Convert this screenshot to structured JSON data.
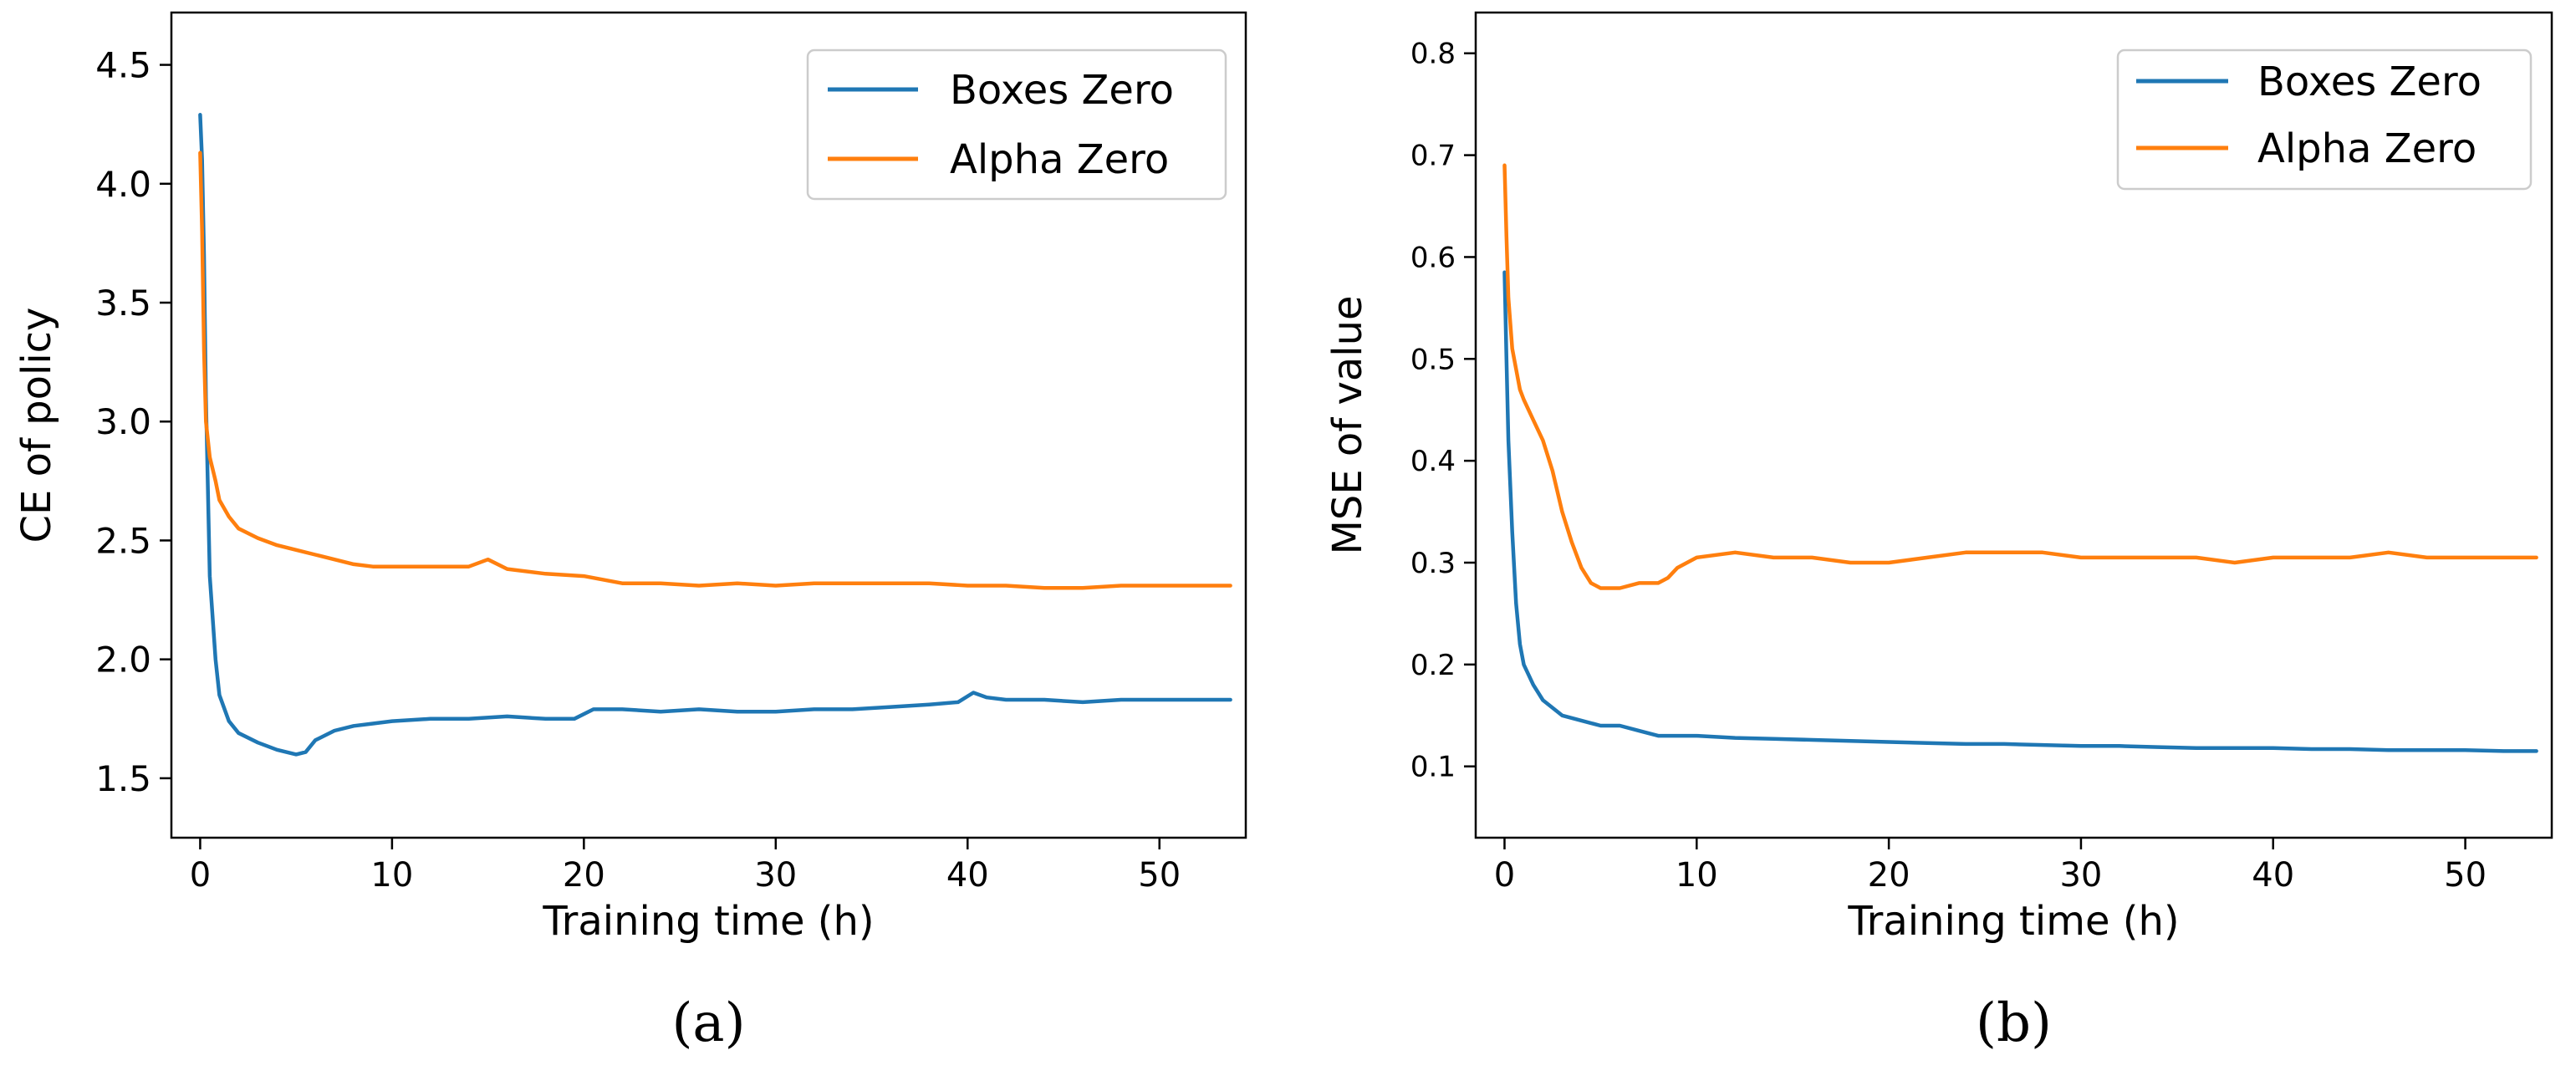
{
  "chart_data": [
    {
      "type": "line",
      "panel_label": "(a)",
      "title": "",
      "xlabel": "Training time (h)",
      "ylabel": "CE of policy",
      "xlim": [
        -1.5,
        54.5
      ],
      "ylim": [
        1.25,
        4.72
      ],
      "xticks": [
        0,
        10,
        20,
        30,
        40,
        50
      ],
      "yticks": [
        1.5,
        2.0,
        2.5,
        3.0,
        3.5,
        4.0,
        4.5
      ],
      "ytick_labels": [
        "1.5",
        "2.0",
        "2.5",
        "3.0",
        "3.5",
        "4.0",
        "4.5"
      ],
      "legend_position": "top-right",
      "series": [
        {
          "name": "Boxes Zero",
          "color": "#1f77b4",
          "x": [
            0,
            0.1,
            0.2,
            0.3,
            0.5,
            0.8,
            1.0,
            1.5,
            2.0,
            3.0,
            4.0,
            5.0,
            5.5,
            6.0,
            7.0,
            8.0,
            9.0,
            10.0,
            12.0,
            14.0,
            16.0,
            18.0,
            19.5,
            20.5,
            22.0,
            24.0,
            26.0,
            28.0,
            30.0,
            32.0,
            34.0,
            36.0,
            38.0,
            39.5,
            40.3,
            41.0,
            42.0,
            44.0,
            46.0,
            48.0,
            50.0,
            52.0,
            53.7
          ],
          "values": [
            4.29,
            4.1,
            3.7,
            3.1,
            2.35,
            2.0,
            1.85,
            1.74,
            1.69,
            1.65,
            1.62,
            1.6,
            1.61,
            1.66,
            1.7,
            1.72,
            1.73,
            1.74,
            1.75,
            1.75,
            1.76,
            1.75,
            1.75,
            1.79,
            1.79,
            1.78,
            1.79,
            1.78,
            1.78,
            1.79,
            1.79,
            1.8,
            1.81,
            1.82,
            1.86,
            1.84,
            1.83,
            1.83,
            1.82,
            1.83,
            1.83,
            1.83,
            1.83
          ]
        },
        {
          "name": "Alpha Zero",
          "color": "#ff7f0e",
          "x": [
            0,
            0.1,
            0.2,
            0.3,
            0.5,
            0.8,
            1.0,
            1.5,
            2.0,
            3.0,
            4.0,
            5.0,
            6.0,
            7.0,
            8.0,
            9.0,
            10.0,
            12.0,
            14.0,
            15.0,
            16.0,
            18.0,
            20.0,
            22.0,
            24.0,
            26.0,
            28.0,
            30.0,
            32.0,
            34.0,
            36.0,
            38.0,
            40.0,
            42.0,
            44.0,
            46.0,
            48.0,
            50.0,
            52.0,
            53.7
          ],
          "values": [
            4.13,
            3.8,
            3.3,
            3.0,
            2.85,
            2.75,
            2.67,
            2.6,
            2.55,
            2.51,
            2.48,
            2.46,
            2.44,
            2.42,
            2.4,
            2.39,
            2.39,
            2.39,
            2.39,
            2.42,
            2.38,
            2.36,
            2.35,
            2.32,
            2.32,
            2.31,
            2.32,
            2.31,
            2.32,
            2.32,
            2.32,
            2.32,
            2.31,
            2.31,
            2.3,
            2.3,
            2.31,
            2.31,
            2.31,
            2.31
          ]
        }
      ]
    },
    {
      "type": "line",
      "panel_label": "(b)",
      "title": "",
      "xlabel": "Training time (h)",
      "ylabel": "MSE of value",
      "xlim": [
        -1.5,
        54.5
      ],
      "ylim": [
        0.03,
        0.84
      ],
      "xticks": [
        0,
        10,
        20,
        30,
        40,
        50
      ],
      "yticks": [
        0.1,
        0.2,
        0.3,
        0.4,
        0.5,
        0.6,
        0.7,
        0.8
      ],
      "ytick_labels": [
        "0.1",
        "0.2",
        "0.3",
        "0.4",
        "0.5",
        "0.6",
        "0.7",
        "0.8"
      ],
      "legend_position": "top-right",
      "series": [
        {
          "name": "Boxes Zero",
          "color": "#1f77b4",
          "x": [
            0,
            0.1,
            0.2,
            0.4,
            0.6,
            0.8,
            1.0,
            1.5,
            2.0,
            3.0,
            4.0,
            5.0,
            6.0,
            7.0,
            8.0,
            9.0,
            10.0,
            12.0,
            14.0,
            16.0,
            18.0,
            20.0,
            22.0,
            24.0,
            26.0,
            28.0,
            30.0,
            32.0,
            34.0,
            36.0,
            38.0,
            40.0,
            42.0,
            44.0,
            46.0,
            48.0,
            50.0,
            52.0,
            53.7
          ],
          "values": [
            0.585,
            0.5,
            0.42,
            0.33,
            0.26,
            0.22,
            0.2,
            0.18,
            0.165,
            0.15,
            0.145,
            0.14,
            0.14,
            0.135,
            0.13,
            0.13,
            0.13,
            0.128,
            0.127,
            0.126,
            0.125,
            0.124,
            0.123,
            0.122,
            0.122,
            0.121,
            0.12,
            0.12,
            0.119,
            0.118,
            0.118,
            0.118,
            0.117,
            0.117,
            0.116,
            0.116,
            0.116,
            0.115,
            0.115
          ]
        },
        {
          "name": "Alpha Zero",
          "color": "#ff7f0e",
          "x": [
            0,
            0.1,
            0.2,
            0.4,
            0.6,
            0.8,
            1.0,
            1.5,
            2.0,
            2.5,
            3.0,
            3.5,
            4.0,
            4.5,
            5.0,
            6.0,
            7.0,
            8.0,
            8.5,
            9.0,
            10.0,
            12.0,
            14.0,
            16.0,
            18.0,
            20.0,
            22.0,
            24.0,
            26.0,
            28.0,
            30.0,
            32.0,
            34.0,
            36.0,
            38.0,
            40.0,
            42.0,
            44.0,
            46.0,
            48.0,
            50.0,
            52.0,
            53.7
          ],
          "values": [
            0.69,
            0.62,
            0.56,
            0.51,
            0.49,
            0.47,
            0.46,
            0.44,
            0.42,
            0.39,
            0.35,
            0.32,
            0.295,
            0.28,
            0.275,
            0.275,
            0.28,
            0.28,
            0.285,
            0.295,
            0.305,
            0.31,
            0.305,
            0.305,
            0.3,
            0.3,
            0.305,
            0.31,
            0.31,
            0.31,
            0.305,
            0.305,
            0.305,
            0.305,
            0.3,
            0.305,
            0.305,
            0.305,
            0.31,
            0.305,
            0.305,
            0.305,
            0.305
          ]
        }
      ]
    }
  ]
}
